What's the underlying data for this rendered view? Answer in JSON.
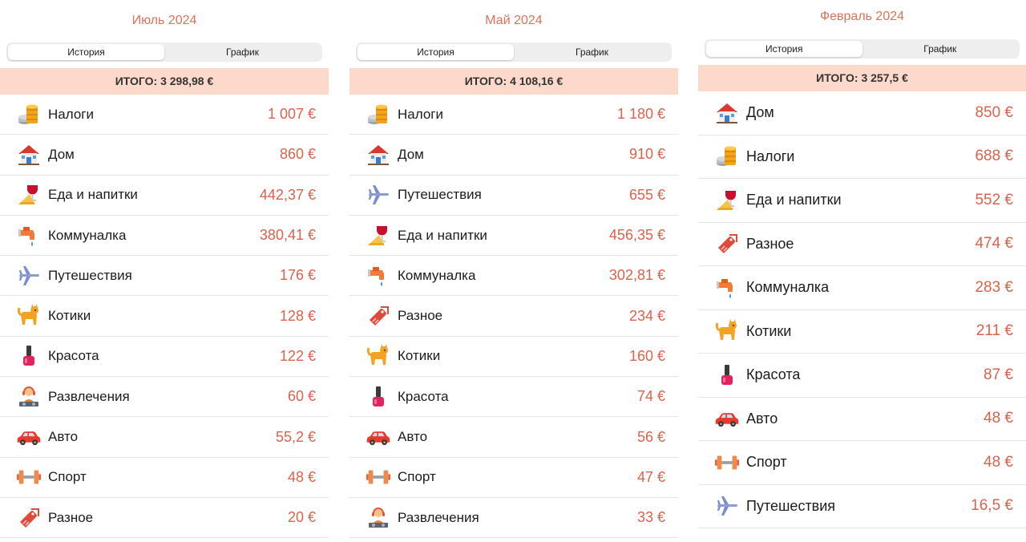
{
  "screens": [
    {
      "title": "Июль 2024",
      "tabs": [
        "История",
        "График"
      ],
      "active_tab": 0,
      "total": "ИТОГО: 3 298,98 €",
      "items": [
        {
          "icon": "coins-icon",
          "name": "Налоги",
          "amount": "1 007 €"
        },
        {
          "icon": "house-icon",
          "name": "Дом",
          "amount": "860 €"
        },
        {
          "icon": "food-drink-icon",
          "name": "Еда и напитки",
          "amount": "442,37 €"
        },
        {
          "icon": "faucet-icon",
          "name": "Коммуналка",
          "amount": "380,41 €"
        },
        {
          "icon": "airplane-icon",
          "name": "Путешествия",
          "amount": "176 €"
        },
        {
          "icon": "cat-icon",
          "name": "Котики",
          "amount": "128 €"
        },
        {
          "icon": "nail-polish-icon",
          "name": "Красота",
          "amount": "122 €"
        },
        {
          "icon": "dj-icon",
          "name": "Развлечения",
          "amount": "60 €"
        },
        {
          "icon": "car-icon",
          "name": "Авто",
          "amount": "55,2 €"
        },
        {
          "icon": "dumbbell-icon",
          "name": "Спорт",
          "amount": "48 €"
        },
        {
          "icon": "misc-icon",
          "name": "Разное",
          "amount": "20 €"
        }
      ]
    },
    {
      "title": "Май 2024",
      "tabs": [
        "История",
        "График"
      ],
      "active_tab": 0,
      "total": "ИТОГО: 4 108,16 €",
      "items": [
        {
          "icon": "coins-icon",
          "name": "Налоги",
          "amount": "1 180 €"
        },
        {
          "icon": "house-icon",
          "name": "Дом",
          "amount": "910 €"
        },
        {
          "icon": "airplane-icon",
          "name": "Путешествия",
          "amount": "655 €"
        },
        {
          "icon": "food-drink-icon",
          "name": "Еда и напитки",
          "amount": "456,35 €"
        },
        {
          "icon": "faucet-icon",
          "name": "Коммуналка",
          "amount": "302,81 €"
        },
        {
          "icon": "misc-icon",
          "name": "Разное",
          "amount": "234 €"
        },
        {
          "icon": "cat-icon",
          "name": "Котики",
          "amount": "160 €"
        },
        {
          "icon": "nail-polish-icon",
          "name": "Красота",
          "amount": "74 €"
        },
        {
          "icon": "car-icon",
          "name": "Авто",
          "amount": "56 €"
        },
        {
          "icon": "dumbbell-icon",
          "name": "Спорт",
          "amount": "47 €"
        },
        {
          "icon": "dj-icon",
          "name": "Развлечения",
          "amount": "33 €"
        }
      ]
    },
    {
      "title": "Февраль 2024",
      "tabs": [
        "История",
        "График"
      ],
      "active_tab": 0,
      "total": "ИТОГО: 3 257,5 €",
      "items": [
        {
          "icon": "house-icon",
          "name": "Дом",
          "amount": "850 €"
        },
        {
          "icon": "coins-icon",
          "name": "Налоги",
          "amount": "688 €"
        },
        {
          "icon": "food-drink-icon",
          "name": "Еда и напитки",
          "amount": "552 €"
        },
        {
          "icon": "misc-icon",
          "name": "Разное",
          "amount": "474 €"
        },
        {
          "icon": "faucet-icon",
          "name": "Коммуналка",
          "amount": "283 €"
        },
        {
          "icon": "cat-icon",
          "name": "Котики",
          "amount": "211 €"
        },
        {
          "icon": "nail-polish-icon",
          "name": "Красота",
          "amount": "87 €"
        },
        {
          "icon": "car-icon",
          "name": "Авто",
          "amount": "48 €"
        },
        {
          "icon": "dumbbell-icon",
          "name": "Спорт",
          "amount": "48 €"
        },
        {
          "icon": "airplane-icon",
          "name": "Путешествия",
          "amount": "16,5 €"
        }
      ]
    }
  ],
  "colors": {
    "accent": "#d9634d",
    "title": "#d9735a",
    "total_bg": "#fdd9cc"
  }
}
